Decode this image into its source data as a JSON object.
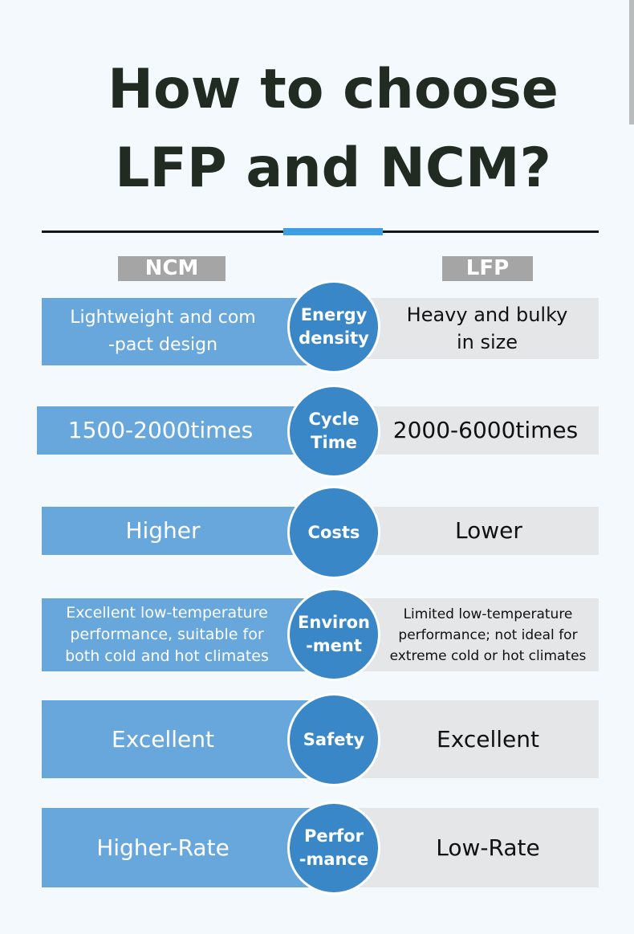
{
  "title": {
    "line1": "How to choose",
    "line2": "LFP and NCM?"
  },
  "columns": {
    "left": "NCM",
    "right": "LFP"
  },
  "rows": [
    {
      "topic": "Energy\ndensity",
      "ncm": "Lightweight and com\n-pact design",
      "lfp": "Heavy and bulky\nin size"
    },
    {
      "topic": "Cycle\nTime",
      "ncm": "1500-2000times",
      "lfp": "2000-6000times"
    },
    {
      "topic": "Costs",
      "ncm": "Higher",
      "lfp": "Lower"
    },
    {
      "topic": "Environ\n-ment",
      "ncm": "Excellent low-temperature\nperformance, suitable for\nboth cold and hot climates",
      "lfp": "Limited low-temperature\nperformance; not ideal for\nextreme cold or hot climates"
    },
    {
      "topic": "Safety",
      "ncm": "Excellent",
      "lfp": "Excellent"
    },
    {
      "topic": "Perfor\n-mance",
      "ncm": "Higher-Rate",
      "lfp": "Low-Rate"
    }
  ],
  "colors": {
    "ncm_bar": "#68a7dc",
    "lfp_bar": "#e4e6e8",
    "circle": "#3a87c8",
    "accent": "#3b9ee6"
  }
}
